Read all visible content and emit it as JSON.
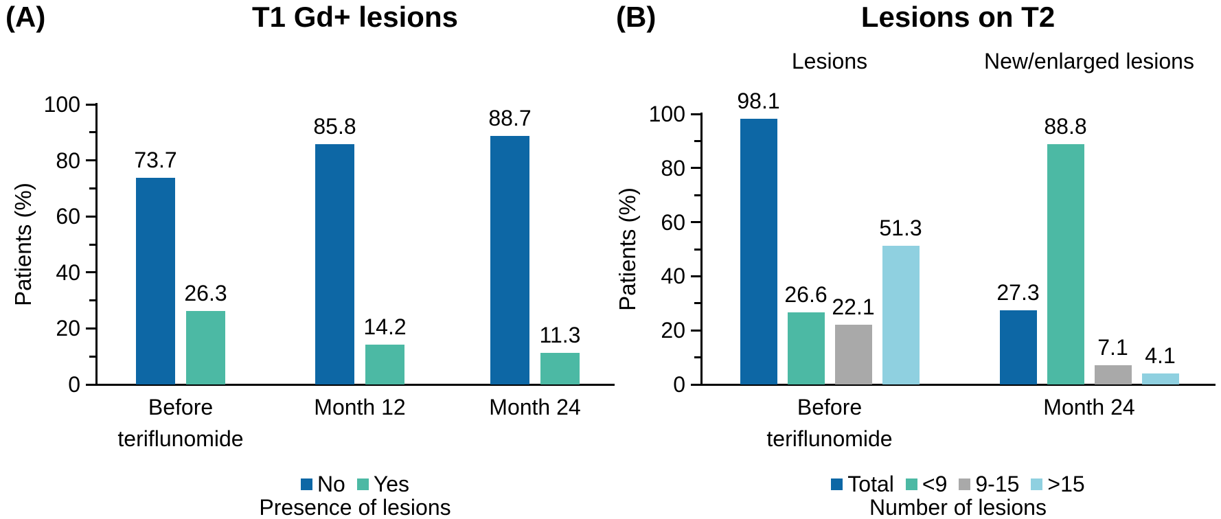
{
  "chart_data": [
    {
      "type": "bar",
      "panel_label": "(A)",
      "title": "T1 Gd+ lesions",
      "ylabel": "Patients (%)",
      "xlabel": "Presence of lesions",
      "ylim": [
        0,
        100
      ],
      "yticks": [
        0,
        20,
        40,
        60,
        80,
        100
      ],
      "minor_tick_step": 10,
      "grid": false,
      "legend_position": "bottom",
      "value_labels_shown": true,
      "categories": [
        "Before\nteriflunomide",
        "Month 12",
        "Month 24"
      ],
      "series": [
        {
          "name": "No",
          "color": "#0D67A5",
          "values": [
            73.7,
            85.8,
            88.7
          ]
        },
        {
          "name": "Yes",
          "color": "#4CB9A4",
          "values": [
            26.3,
            14.2,
            11.3
          ]
        }
      ]
    },
    {
      "type": "bar",
      "panel_label": "(B)",
      "title": "Lesions on T2",
      "column_headers": [
        "Lesions",
        "New/enlarged lesions"
      ],
      "ylabel": "Patients (%)",
      "xlabel": "Number of lesions",
      "ylim": [
        0,
        100
      ],
      "yticks": [
        0,
        20,
        40,
        60,
        80,
        100
      ],
      "minor_tick_step": 10,
      "grid": false,
      "legend_position": "bottom",
      "value_labels_shown": true,
      "categories": [
        "Before\nteriflunomide",
        "Month 24"
      ],
      "series": [
        {
          "name": "Total",
          "color": "#0D67A5",
          "values": [
            98.1,
            27.3
          ]
        },
        {
          "name": "<9",
          "color": "#4CB9A4",
          "values": [
            26.6,
            88.8
          ]
        },
        {
          "name": "9-15",
          "color": "#A9A9A9",
          "values": [
            22.1,
            7.1
          ]
        },
        {
          "name": ">15",
          "color": "#8FD0E0",
          "values": [
            51.3,
            4.1
          ]
        }
      ]
    }
  ]
}
